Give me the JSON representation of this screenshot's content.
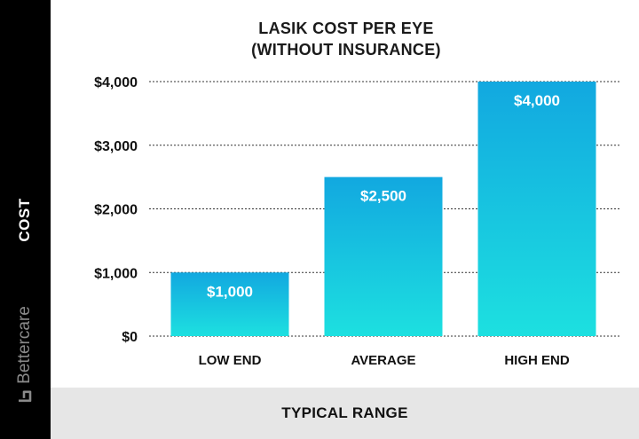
{
  "chart_data": {
    "type": "bar",
    "title_line1": "LASIK COST PER EYE",
    "title_line2": "(WITHOUT INSURANCE)",
    "xlabel": "TYPICAL RANGE",
    "ylabel": "COST",
    "categories": [
      "LOW END",
      "AVERAGE",
      "HIGH END"
    ],
    "values": [
      1000,
      2500,
      4000
    ],
    "data_labels": [
      "$1,000",
      "$2,500",
      "$4,000"
    ],
    "ylim": [
      0,
      4000
    ],
    "yticks": [
      0,
      1000,
      2000,
      3000,
      4000
    ],
    "ytick_labels": [
      "$0",
      "$1,000",
      "$2,000",
      "$3,000",
      "$4,000"
    ],
    "grid": true,
    "bar_color_top": "#12a8e0",
    "bar_color_bottom": "#1de0e0"
  },
  "brand": {
    "name": "Bettercare",
    "icon": "bettercare-logo-icon",
    "color": "#8a8a8a"
  },
  "colors": {
    "sidebar": "#000000",
    "footer_band": "#e6e6e6",
    "gridline": "#333333"
  }
}
